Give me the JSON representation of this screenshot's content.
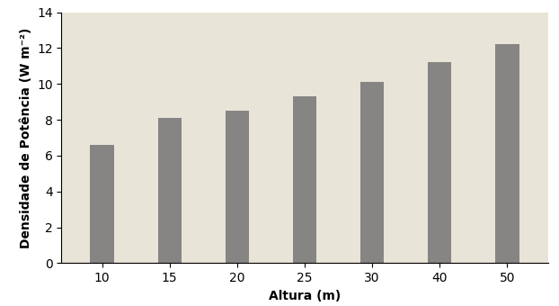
{
  "chart_data": {
    "type": "bar",
    "categories": [
      "10",
      "15",
      "20",
      "25",
      "30",
      "40",
      "50"
    ],
    "values": [
      6.6,
      8.1,
      8.5,
      9.3,
      10.1,
      11.2,
      12.2
    ],
    "color": "#6e6e6e",
    "xlabel": "Altura (m)",
    "ylabel": "Densidade de Potência (W m⁻²)",
    "ylim": [
      0,
      14
    ],
    "yticks": [
      0,
      2,
      4,
      6,
      8,
      10,
      12,
      14
    ],
    "grid": false
  }
}
